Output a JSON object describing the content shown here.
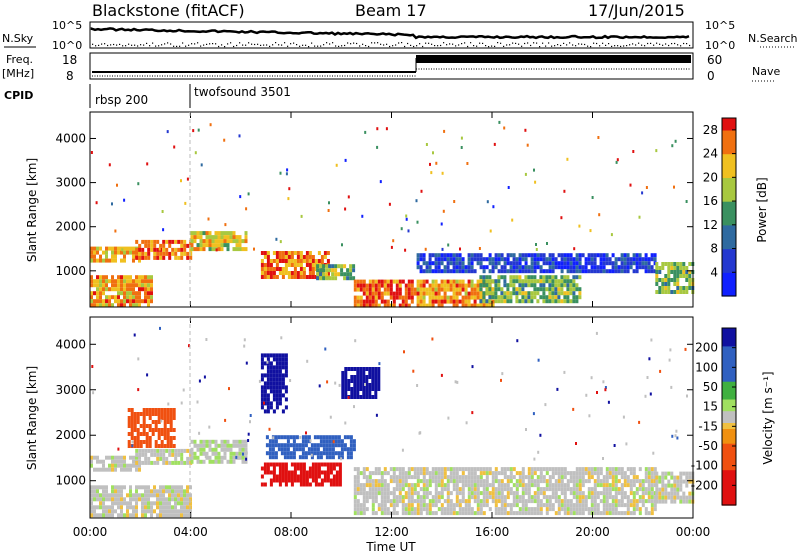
{
  "header": {
    "station": "Blackstone (fitACF)",
    "beam": "Beam 17",
    "date": "17/Jun/2015"
  },
  "summary_panels": {
    "nsky_label": "N.Sky",
    "nsearch_label": "N.Search",
    "nsky_top_tick": "10^5",
    "nsky_bottom_tick": "10^0",
    "freq_label_1": "Freq.",
    "freq_label_2": "[MHz]",
    "freq_ticks": [
      "18",
      "8"
    ],
    "nave_label": "Nave",
    "nave_ticks": [
      "60",
      "0"
    ],
    "cpid_label": "CPID",
    "cpid_modes": [
      {
        "name": "rbsp 200",
        "start_hour": 0
      },
      {
        "name": "twofsound 3501",
        "start_hour": 4
      }
    ]
  },
  "chart_data": [
    {
      "type": "heatmap",
      "panel": "power",
      "ylabel": "Slant Range [km]",
      "y_ticks": [
        1000,
        2000,
        3000,
        4000
      ],
      "ylim": [
        180,
        4600
      ],
      "x_ticks": [
        "00:00",
        "04:00",
        "08:00",
        "12:00",
        "16:00",
        "20:00",
        "00:00"
      ],
      "xlim_hours": [
        0,
        24
      ],
      "colorbar": {
        "label": "Power [dB]",
        "ticks": [
          4,
          8,
          12,
          16,
          20,
          24,
          28
        ],
        "range": [
          0,
          30
        ]
      },
      "echo_regions": [
        {
          "t_start": 0.0,
          "t_end": 2.0,
          "range_km": [
            1200,
            1550
          ],
          "level": 22
        },
        {
          "t_start": 1.8,
          "t_end": 4.0,
          "range_km": [
            1300,
            1700
          ],
          "level": 26
        },
        {
          "t_start": 4.0,
          "t_end": 6.2,
          "range_km": [
            1450,
            1900
          ],
          "level": 20
        },
        {
          "t_start": 6.8,
          "t_end": 9.5,
          "range_km": [
            900,
            1450
          ],
          "level": 26
        },
        {
          "t_start": 9.0,
          "t_end": 10.5,
          "range_km": [
            850,
            1150
          ],
          "level": 16
        },
        {
          "t_start": 0.0,
          "t_end": 2.5,
          "range_km": [
            250,
            900
          ],
          "level": 24
        },
        {
          "t_start": 10.5,
          "t_end": 13.0,
          "range_km": [
            250,
            800
          ],
          "level": 28
        },
        {
          "t_start": 13.0,
          "t_end": 16.0,
          "range_km": [
            250,
            800
          ],
          "level": 24
        },
        {
          "t_start": 15.5,
          "t_end": 19.5,
          "range_km": [
            300,
            900
          ],
          "level": 16
        },
        {
          "t_start": 13.0,
          "t_end": 22.5,
          "range_km": [
            1000,
            1400
          ],
          "level": 6
        },
        {
          "t_start": 22.5,
          "t_end": 24.0,
          "range_km": [
            500,
            1200
          ],
          "level": 16
        }
      ]
    },
    {
      "type": "heatmap",
      "panel": "velocity",
      "ylabel": "Slant Range [km]",
      "xlabel": "Time UT",
      "y_ticks": [
        1000,
        2000,
        3000,
        4000
      ],
      "ylim": [
        180,
        4600
      ],
      "x_ticks": [
        "00:00",
        "04:00",
        "08:00",
        "12:00",
        "16:00",
        "20:00",
        "00:00"
      ],
      "xlim_hours": [
        0,
        24
      ],
      "colorbar": {
        "label": "Velocity [m s⁻¹]",
        "ticks": [
          -200,
          -100,
          -50,
          -15,
          15,
          50,
          100,
          200
        ],
        "range": [
          -250,
          250
        ]
      },
      "echo_regions": [
        {
          "t_start": 0.0,
          "t_end": 2.0,
          "range_km": [
            1200,
            1550
          ],
          "velocity": 0
        },
        {
          "t_start": 1.8,
          "t_end": 4.0,
          "range_km": [
            1350,
            1700
          ],
          "velocity": 0
        },
        {
          "t_start": 4.0,
          "t_end": 6.2,
          "range_km": [
            1400,
            1900
          ],
          "velocity": 5
        },
        {
          "t_start": 1.5,
          "t_end": 3.3,
          "range_km": [
            1800,
            2600
          ],
          "velocity": -120
        },
        {
          "t_start": 6.8,
          "t_end": 10.0,
          "range_km": [
            950,
            1400
          ],
          "velocity": -180
        },
        {
          "t_start": 7.0,
          "t_end": 10.5,
          "range_km": [
            1500,
            2000
          ],
          "velocity": 180
        },
        {
          "t_start": 6.8,
          "t_end": 7.8,
          "range_km": [
            2500,
            3800
          ],
          "velocity": 220
        },
        {
          "t_start": 0.0,
          "t_end": 4.0,
          "range_km": [
            250,
            900
          ],
          "velocity": 0
        },
        {
          "t_start": 10.5,
          "t_end": 22.5,
          "range_km": [
            250,
            1300
          ],
          "velocity": 0
        },
        {
          "t_start": 22.5,
          "t_end": 24.0,
          "range_km": [
            500,
            1200
          ],
          "velocity": 0
        },
        {
          "t_start": 10.0,
          "t_end": 11.5,
          "range_km": [
            2800,
            3500
          ],
          "velocity": 220
        }
      ]
    }
  ]
}
